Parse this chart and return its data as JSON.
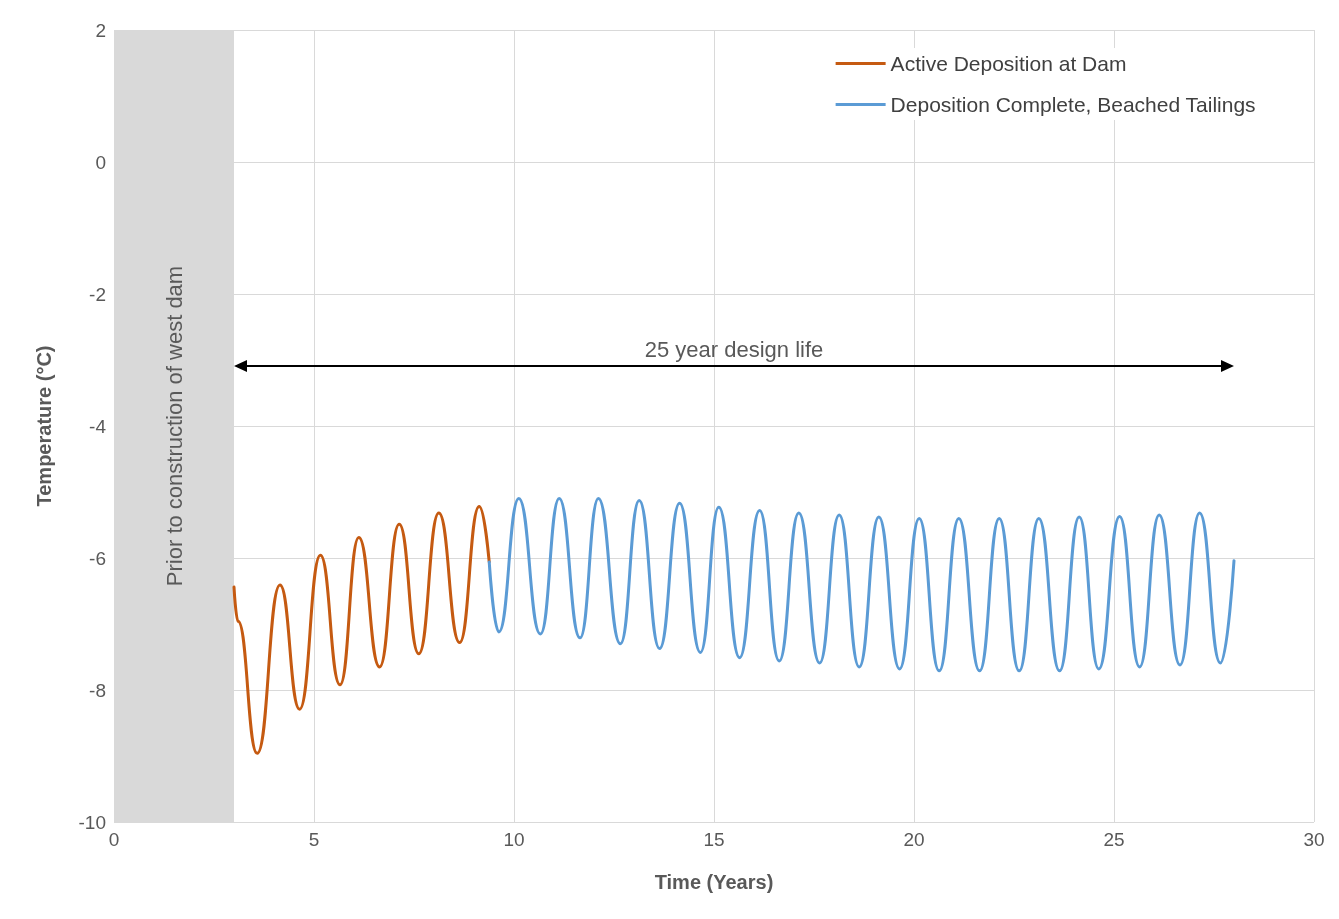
{
  "chart_data": {
    "type": "line",
    "xlabel": "Time (Years)",
    "ylabel": "Temperature (°C)",
    "xlim": [
      0,
      30
    ],
    "xticks": [
      0,
      5,
      10,
      15,
      20,
      25,
      30
    ],
    "ylim": [
      -10,
      2
    ],
    "yticks": [
      -10,
      -8,
      -6,
      -4,
      -2,
      0,
      2
    ],
    "grid": true,
    "legend": "top right",
    "marker": "none",
    "line_style": "solid",
    "series": [
      {
        "name": "Active Deposition at Dam",
        "color": "#c55a11",
        "x": [
          3,
          3.1,
          3.58,
          4.15,
          4.64,
          5.16,
          5.65,
          6.12,
          6.64,
          7.13,
          7.62,
          8.12,
          8.64,
          9.13,
          9.38
        ],
        "values": [
          -6.44,
          -6.96,
          -8.96,
          -6.41,
          -8.29,
          -5.96,
          -7.92,
          -5.69,
          -7.65,
          -5.49,
          -7.45,
          -5.32,
          -7.28,
          -5.22,
          -6.06
        ]
      },
      {
        "name": "Deposition Complete, Beached Tailings",
        "color": "#5b9bd5",
        "x": [
          9.38,
          9.62,
          10.12,
          10.66,
          11.13,
          11.65,
          12.11,
          12.66,
          13.13,
          13.64,
          14.14,
          14.66,
          15.12,
          15.64,
          16.14,
          16.63,
          17.12,
          17.64,
          18.13,
          18.63,
          19.12,
          19.64,
          20.13,
          20.63,
          21.12,
          21.64,
          22.13,
          22.63,
          23.12,
          23.64,
          24.13,
          24.62,
          25.14,
          25.64,
          26.13,
          26.65,
          27.14,
          27.66,
          28
        ],
        "values": [
          -6.06,
          -7.12,
          -5.1,
          -7.15,
          -5.1,
          -7.21,
          -5.1,
          -7.3,
          -5.13,
          -7.37,
          -5.17,
          -7.43,
          -5.23,
          -7.51,
          -5.28,
          -7.56,
          -5.32,
          -7.59,
          -5.35,
          -7.65,
          -5.38,
          -7.68,
          -5.4,
          -7.71,
          -5.4,
          -7.71,
          -5.4,
          -7.71,
          -5.4,
          -7.71,
          -5.38,
          -7.68,
          -5.37,
          -7.65,
          -5.35,
          -7.62,
          -5.32,
          -7.59,
          -6.04
        ]
      }
    ],
    "bands": [
      {
        "axis": "x",
        "from": 0,
        "to": 3,
        "label": "Prior to construction of west dam",
        "color": "#d9d9d9"
      }
    ],
    "annotations": [
      "25 year design life"
    ]
  }
}
